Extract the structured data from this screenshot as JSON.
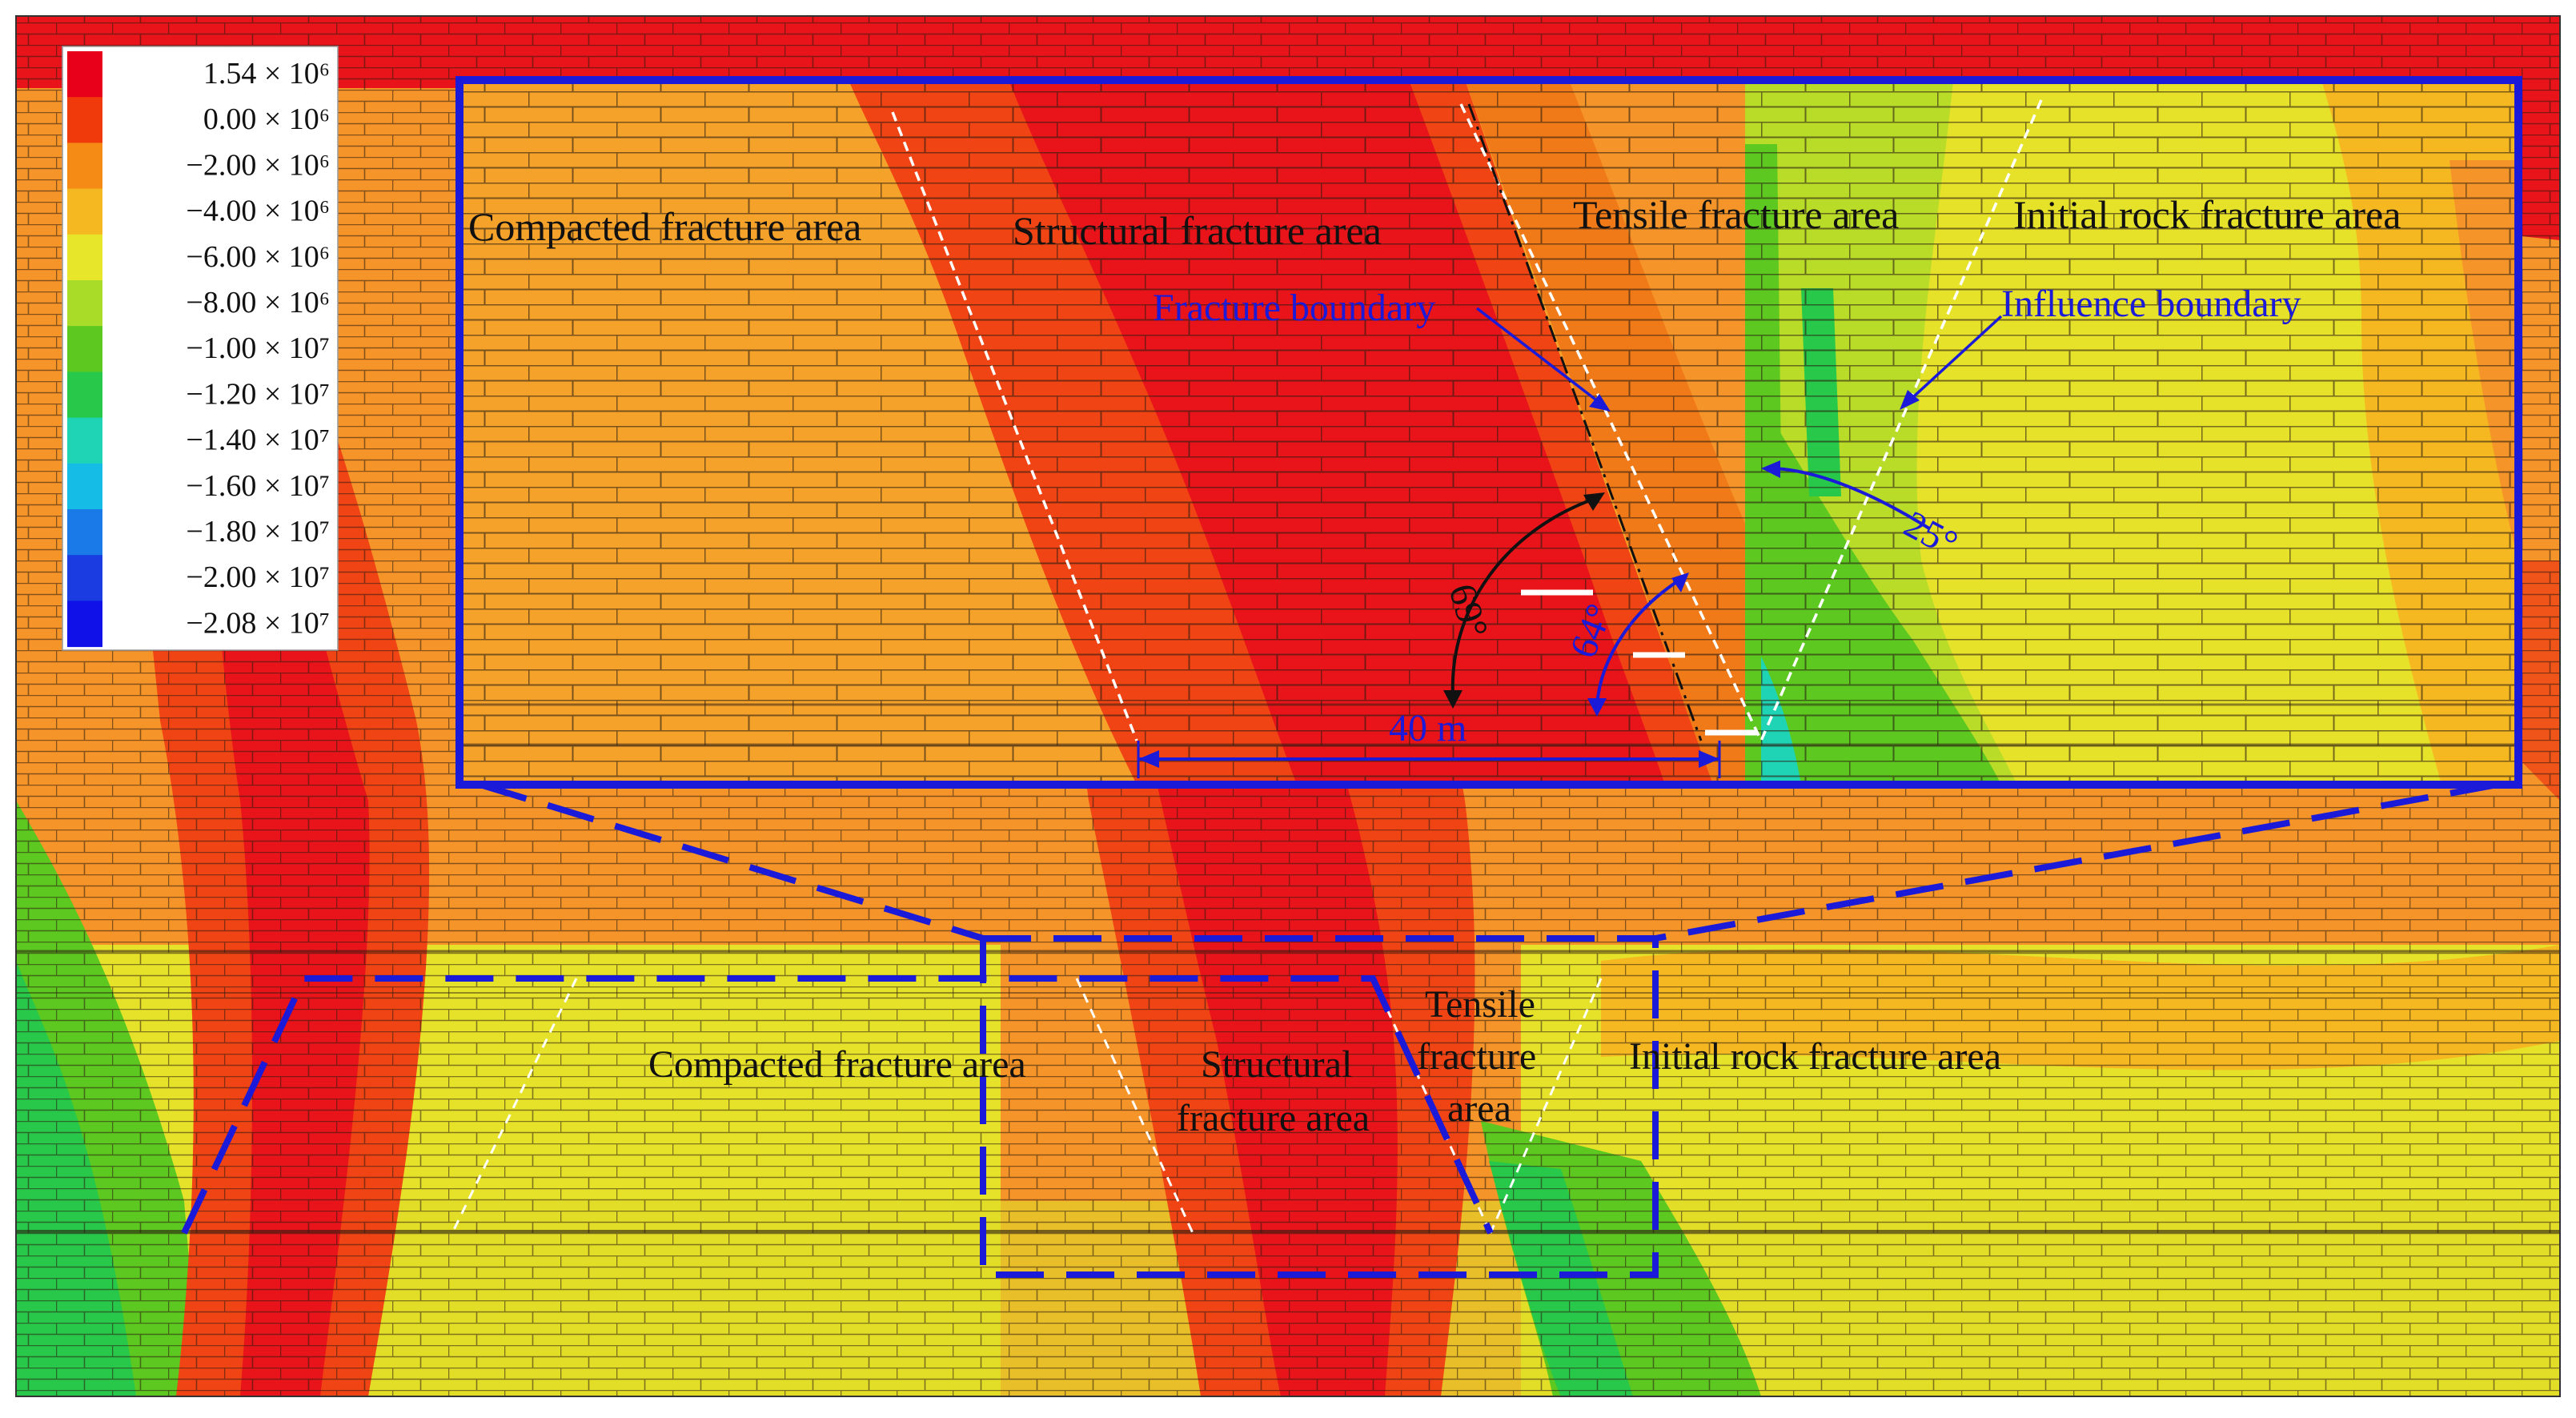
{
  "legend": {
    "entries": [
      {
        "label": "1.54 × 10⁶",
        "color": "#e8001a"
      },
      {
        "label": "0.00 × 10⁶",
        "color": "#f03a0c"
      },
      {
        "label": "−2.00 × 10⁶",
        "color": "#f58a14"
      },
      {
        "label": "−4.00 × 10⁶",
        "color": "#f5b820"
      },
      {
        "label": "−6.00 × 10⁶",
        "color": "#e8e62a"
      },
      {
        "label": "−8.00 × 10⁶",
        "color": "#a8dc28"
      },
      {
        "label": "−1.00 × 10⁷",
        "color": "#5cc820"
      },
      {
        "label": "−1.20 × 10⁷",
        "color": "#28c84a"
      },
      {
        "label": "−1.40 × 10⁷",
        "color": "#1ed4b4"
      },
      {
        "label": "−1.60 × 10⁷",
        "color": "#14bce6"
      },
      {
        "label": "−1.80 × 10⁷",
        "color": "#1a7ae8"
      },
      {
        "label": "−2.00 × 10⁷",
        "color": "#1a3ce0"
      },
      {
        "label": "−2.08 × 10⁷",
        "color": "#1010e8"
      }
    ]
  },
  "inset": {
    "zones": {
      "compacted": "Compacted fracture area",
      "structural": "Structural fracture area",
      "tensile": "Tensile fracture area",
      "initial": "Initial rock fracture area"
    },
    "fracture_boundary": "Fracture boundary",
    "influence_boundary": "Influence boundary",
    "angle_a": "69°",
    "angle_b": "64°",
    "angle_c": "25°",
    "distance": "40 m"
  },
  "main": {
    "compacted": "Compacted fracture area",
    "structural_1": "Structural",
    "structural_2": "fracture area",
    "tensile_1": "Tensile",
    "tensile_2": "fracture",
    "tensile_3": "area",
    "initial": "Initial rock fracture area"
  },
  "colors": {
    "red": "#e8141a",
    "red_orange": "#f04414",
    "orange": "#f59428",
    "yellow": "#e6e22a",
    "green": "#5cc820",
    "blue_frame": "#1a1ad8"
  }
}
